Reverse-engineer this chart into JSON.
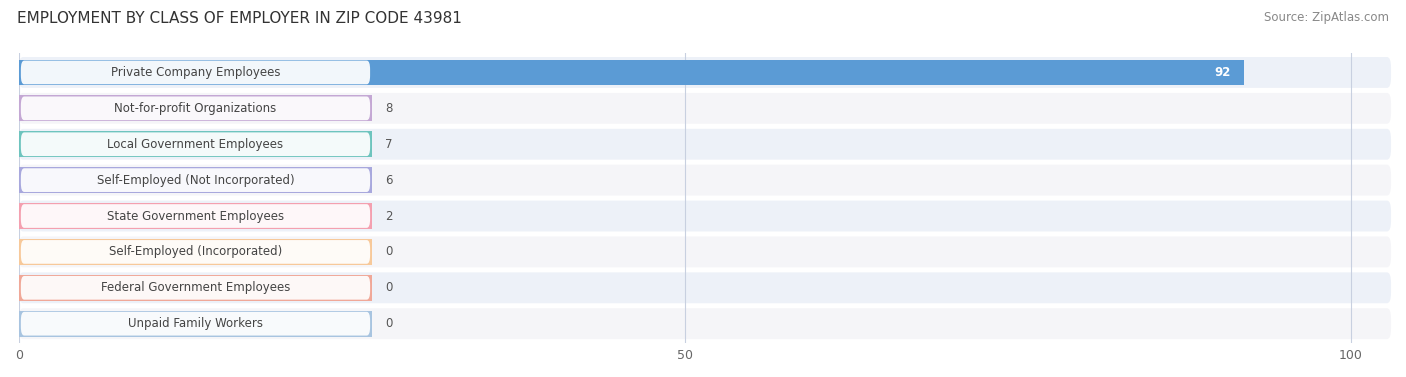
{
  "title": "EMPLOYMENT BY CLASS OF EMPLOYER IN ZIP CODE 43981",
  "source": "Source: ZipAtlas.com",
  "categories": [
    "Private Company Employees",
    "Not-for-profit Organizations",
    "Local Government Employees",
    "Self-Employed (Not Incorporated)",
    "State Government Employees",
    "Self-Employed (Incorporated)",
    "Federal Government Employees",
    "Unpaid Family Workers"
  ],
  "values": [
    92,
    8,
    7,
    6,
    2,
    0,
    0,
    0
  ],
  "bar_colors": [
    "#5b9bd5",
    "#c4a8d4",
    "#6ec4be",
    "#a8a8dd",
    "#f4a0b0",
    "#f7c99a",
    "#f0a898",
    "#a8c4e0"
  ],
  "row_bg_even": "#edf1f8",
  "row_bg_odd": "#f5f5f8",
  "xlim": [
    0,
    103
  ],
  "xticks": [
    0,
    50,
    100
  ],
  "title_fontsize": 11,
  "source_fontsize": 8.5,
  "label_fontsize": 8.5,
  "value_fontsize": 8.5,
  "background_color": "#ffffff",
  "grid_color": "#c8d0e0"
}
